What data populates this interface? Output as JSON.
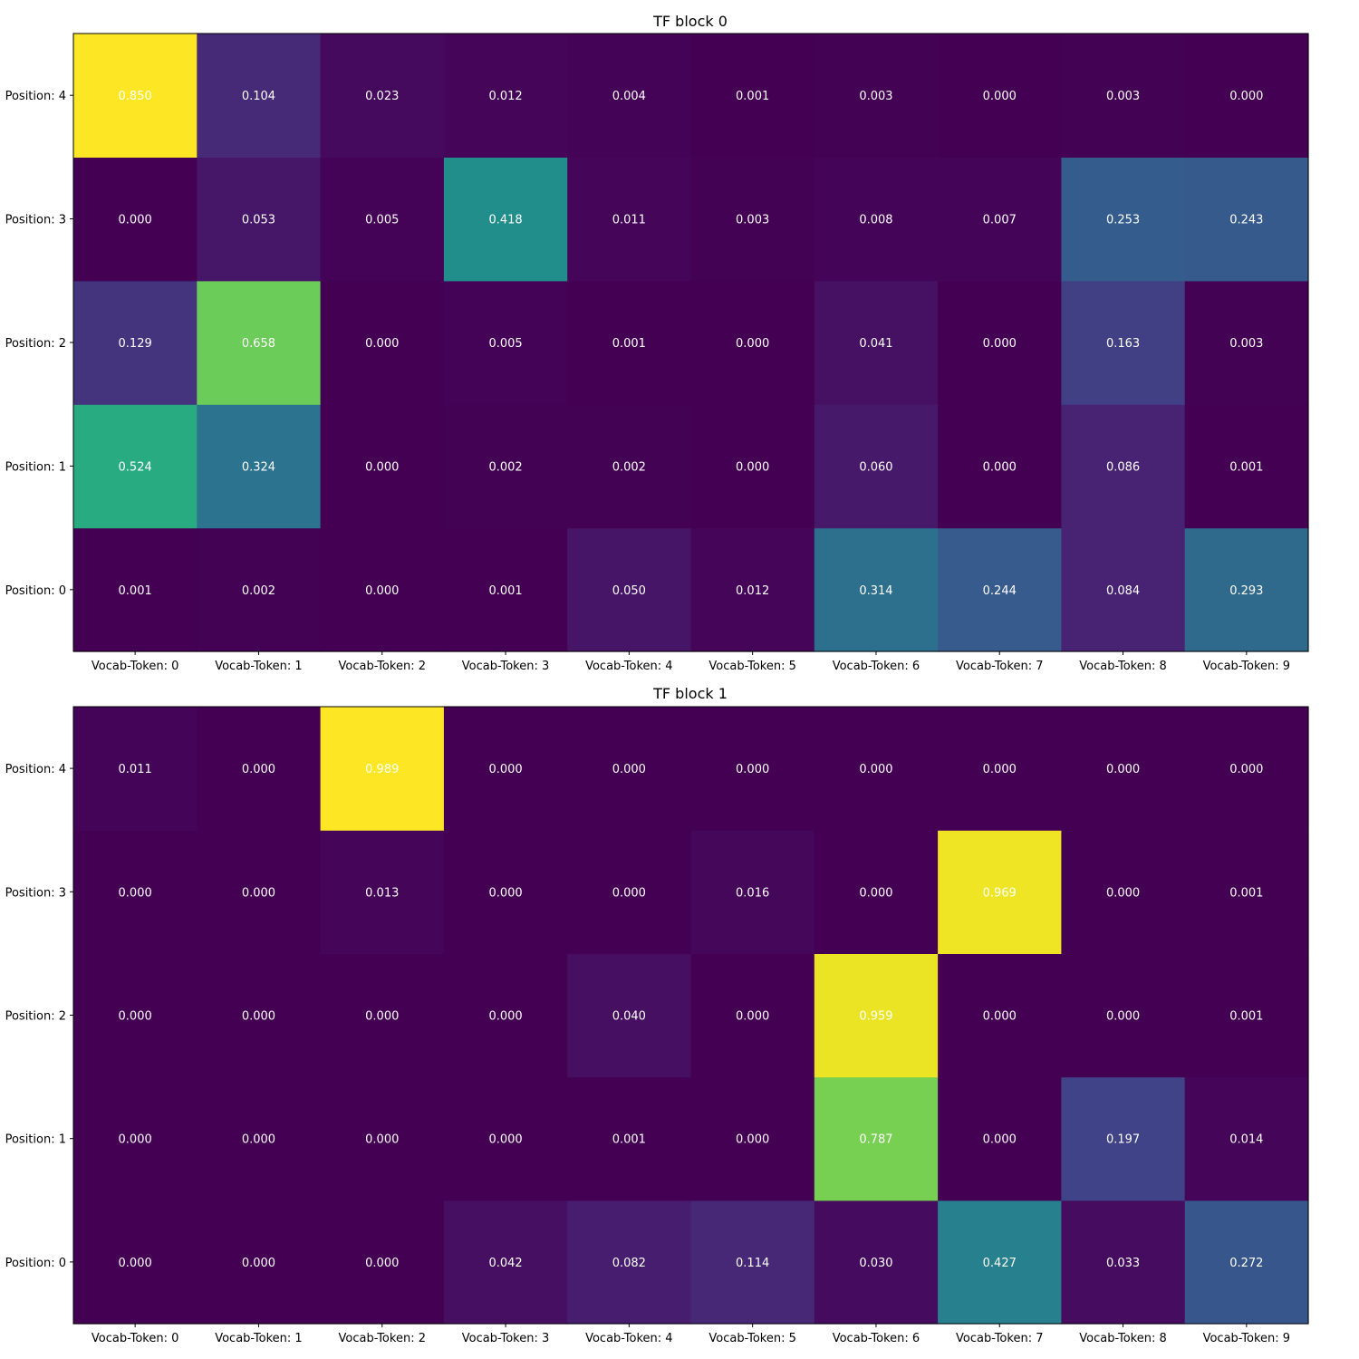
{
  "chart_data": [
    {
      "type": "heatmap",
      "title": "TF block 0",
      "colormap": "viridis",
      "color_range": [
        0,
        0.85
      ],
      "x_categories": [
        "Vocab-Token: 0",
        "Vocab-Token: 1",
        "Vocab-Token: 2",
        "Vocab-Token: 3",
        "Vocab-Token: 4",
        "Vocab-Token: 5",
        "Vocab-Token: 6",
        "Vocab-Token: 7",
        "Vocab-Token: 8",
        "Vocab-Token: 9"
      ],
      "y_categories": [
        "Position: 0",
        "Position: 1",
        "Position: 2",
        "Position: 3",
        "Position: 4"
      ],
      "values": [
        [
          "0.001",
          "0.002",
          "0.000",
          "0.001",
          "0.050",
          "0.012",
          "0.314",
          "0.244",
          "0.084",
          "0.293"
        ],
        [
          "0.524",
          "0.324",
          "0.000",
          "0.002",
          "0.002",
          "0.000",
          "0.060",
          "0.000",
          "0.086",
          "0.001"
        ],
        [
          "0.129",
          "0.658",
          "0.000",
          "0.005",
          "0.001",
          "0.000",
          "0.041",
          "0.000",
          "0.163",
          "0.003"
        ],
        [
          "0.000",
          "0.053",
          "0.005",
          "0.418",
          "0.011",
          "0.003",
          "0.008",
          "0.007",
          "0.253",
          "0.243"
        ],
        [
          "0.850",
          "0.104",
          "0.023",
          "0.012",
          "0.004",
          "0.001",
          "0.003",
          "0.000",
          "0.003",
          "0.000"
        ]
      ]
    },
    {
      "type": "heatmap",
      "title": "TF block 1",
      "colormap": "viridis",
      "color_range": [
        0,
        0.989
      ],
      "x_categories": [
        "Vocab-Token: 0",
        "Vocab-Token: 1",
        "Vocab-Token: 2",
        "Vocab-Token: 3",
        "Vocab-Token: 4",
        "Vocab-Token: 5",
        "Vocab-Token: 6",
        "Vocab-Token: 7",
        "Vocab-Token: 8",
        "Vocab-Token: 9"
      ],
      "y_categories": [
        "Position: 0",
        "Position: 1",
        "Position: 2",
        "Position: 3",
        "Position: 4"
      ],
      "values": [
        [
          "0.000",
          "0.000",
          "0.000",
          "0.042",
          "0.082",
          "0.114",
          "0.030",
          "0.427",
          "0.033",
          "0.272"
        ],
        [
          "0.000",
          "0.000",
          "0.000",
          "0.000",
          "0.001",
          "0.000",
          "0.787",
          "0.000",
          "0.197",
          "0.014"
        ],
        [
          "0.000",
          "0.000",
          "0.000",
          "0.000",
          "0.040",
          "0.000",
          "0.959",
          "0.000",
          "0.000",
          "0.001"
        ],
        [
          "0.000",
          "0.000",
          "0.013",
          "0.000",
          "0.000",
          "0.016",
          "0.000",
          "0.969",
          "0.000",
          "0.001"
        ],
        [
          "0.011",
          "0.000",
          "0.989",
          "0.000",
          "0.000",
          "0.000",
          "0.000",
          "0.000",
          "0.000",
          "0.000"
        ]
      ]
    }
  ]
}
